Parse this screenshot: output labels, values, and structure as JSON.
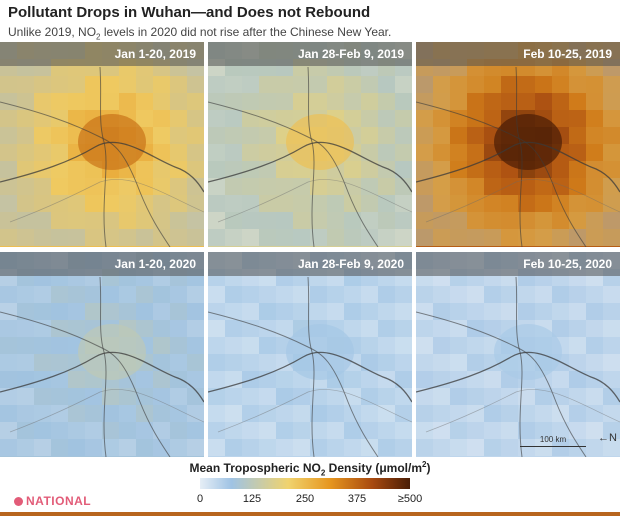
{
  "header": {
    "title": "Pollutant Drops in Wuhan—and Does not Rebound",
    "subtitle_pre": "Unlike 2019, NO",
    "subtitle_sub": "2",
    "subtitle_post": " levels in 2020 did not rise after the Chinese New Year."
  },
  "panels": [
    {
      "label": "Jan 1-20, 2019",
      "intensity": 0.55
    },
    {
      "label": "Jan 28-Feb 9, 2019",
      "intensity": 0.35
    },
    {
      "label": "Feb 10-25, 2019",
      "intensity": 0.9
    },
    {
      "label": "Jan 1-20, 2020",
      "intensity": 0.15
    },
    {
      "label": "Jan 28-Feb 9, 2020",
      "intensity": 0.05
    },
    {
      "label": "Feb 10-25, 2020",
      "intensity": 0.04
    }
  ],
  "legend": {
    "title_pre": "Mean Tropospheric NO",
    "title_sub": "2",
    "title_mid": " Density (μmol/m",
    "title_sup": "2",
    "title_post": ")",
    "ticks": [
      "0",
      "125",
      "250",
      "375",
      "≥500"
    ]
  },
  "scale": {
    "label": "100 km"
  },
  "compass": {
    "label": "N"
  },
  "logo": {
    "text": "NATIONAL"
  },
  "colors": {
    "low": "#e6eef6",
    "mid": "#f0b43c",
    "high": "#4a1d05"
  }
}
